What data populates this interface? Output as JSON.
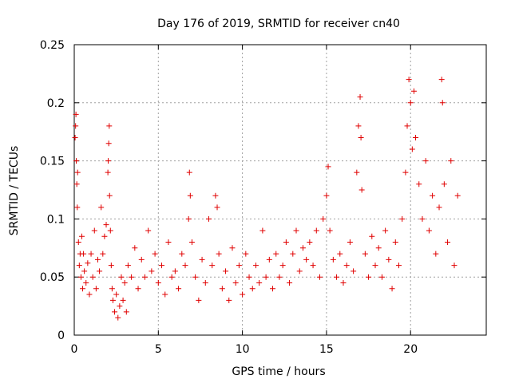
{
  "colors": {
    "marker": "#e00000",
    "grid": "#a0a0a0",
    "axis": "#000000",
    "background": "#ffffff"
  },
  "chart_data": {
    "type": "scatter",
    "title": "Day 176 of 2019, SRMTID for receiver cn40",
    "xlabel": "GPS time / hours",
    "ylabel": "SRMTID / TECUs",
    "xlim": [
      0,
      24.5
    ],
    "ylim": [
      0,
      0.25
    ],
    "grid": true,
    "marker": "+",
    "xticks": [
      0,
      5,
      10,
      15,
      20
    ],
    "xtick_labels": [
      "0",
      "5",
      "10",
      "15",
      "20"
    ],
    "yticks": [
      0,
      0.05,
      0.1,
      0.15,
      0.2,
      0.25
    ],
    "ytick_labels": [
      "0",
      "0.05",
      "0.1",
      "0.15",
      "0.2",
      "0.25"
    ],
    "series": [
      {
        "name": "SRMTID",
        "points": [
          [
            0.05,
            0.17
          ],
          [
            0.08,
            0.18
          ],
          [
            0.1,
            0.19
          ],
          [
            0.12,
            0.15
          ],
          [
            0.15,
            0.13
          ],
          [
            0.18,
            0.11
          ],
          [
            0.2,
            0.14
          ],
          [
            0.25,
            0.08
          ],
          [
            0.3,
            0.06
          ],
          [
            0.35,
            0.07
          ],
          [
            0.4,
            0.05
          ],
          [
            0.45,
            0.085
          ],
          [
            0.5,
            0.04
          ],
          [
            0.55,
            0.07
          ],
          [
            0.6,
            0.055
          ],
          [
            0.7,
            0.045
          ],
          [
            0.8,
            0.062
          ],
          [
            0.9,
            0.035
          ],
          [
            1.0,
            0.07
          ],
          [
            1.1,
            0.05
          ],
          [
            1.2,
            0.09
          ],
          [
            1.3,
            0.04
          ],
          [
            1.4,
            0.065
          ],
          [
            1.5,
            0.055
          ],
          [
            1.6,
            0.11
          ],
          [
            1.7,
            0.07
          ],
          [
            1.8,
            0.085
          ],
          [
            1.9,
            0.095
          ],
          [
            2.0,
            0.14
          ],
          [
            2.02,
            0.15
          ],
          [
            2.05,
            0.165
          ],
          [
            2.08,
            0.18
          ],
          [
            2.1,
            0.12
          ],
          [
            2.15,
            0.09
          ],
          [
            2.2,
            0.06
          ],
          [
            2.25,
            0.04
          ],
          [
            2.3,
            0.03
          ],
          [
            2.4,
            0.02
          ],
          [
            2.5,
            0.035
          ],
          [
            2.6,
            0.015
          ],
          [
            2.7,
            0.025
          ],
          [
            2.8,
            0.05
          ],
          [
            2.9,
            0.03
          ],
          [
            3.0,
            0.045
          ],
          [
            3.1,
            0.02
          ],
          [
            3.2,
            0.06
          ],
          [
            3.4,
            0.05
          ],
          [
            3.6,
            0.075
          ],
          [
            3.8,
            0.04
          ],
          [
            4.0,
            0.065
          ],
          [
            4.2,
            0.05
          ],
          [
            4.4,
            0.09
          ],
          [
            4.6,
            0.055
          ],
          [
            4.8,
            0.07
          ],
          [
            5.0,
            0.045
          ],
          [
            5.2,
            0.06
          ],
          [
            5.4,
            0.035
          ],
          [
            5.6,
            0.08
          ],
          [
            5.8,
            0.05
          ],
          [
            6.0,
            0.055
          ],
          [
            6.2,
            0.04
          ],
          [
            6.4,
            0.07
          ],
          [
            6.6,
            0.06
          ],
          [
            6.8,
            0.1
          ],
          [
            6.85,
            0.14
          ],
          [
            6.9,
            0.12
          ],
          [
            7.0,
            0.08
          ],
          [
            7.2,
            0.05
          ],
          [
            7.4,
            0.03
          ],
          [
            7.6,
            0.065
          ],
          [
            7.8,
            0.045
          ],
          [
            8.0,
            0.1
          ],
          [
            8.2,
            0.06
          ],
          [
            8.4,
            0.12
          ],
          [
            8.5,
            0.11
          ],
          [
            8.6,
            0.07
          ],
          [
            8.8,
            0.04
          ],
          [
            9.0,
            0.055
          ],
          [
            9.2,
            0.03
          ],
          [
            9.4,
            0.075
          ],
          [
            9.6,
            0.045
          ],
          [
            9.8,
            0.06
          ],
          [
            10.0,
            0.035
          ],
          [
            10.2,
            0.07
          ],
          [
            10.4,
            0.05
          ],
          [
            10.6,
            0.04
          ],
          [
            10.8,
            0.06
          ],
          [
            11.0,
            0.045
          ],
          [
            11.2,
            0.09
          ],
          [
            11.4,
            0.05
          ],
          [
            11.6,
            0.065
          ],
          [
            11.8,
            0.04
          ],
          [
            12.0,
            0.07
          ],
          [
            12.2,
            0.05
          ],
          [
            12.4,
            0.06
          ],
          [
            12.6,
            0.08
          ],
          [
            12.8,
            0.045
          ],
          [
            13.0,
            0.07
          ],
          [
            13.2,
            0.09
          ],
          [
            13.4,
            0.055
          ],
          [
            13.6,
            0.075
          ],
          [
            13.8,
            0.065
          ],
          [
            14.0,
            0.08
          ],
          [
            14.2,
            0.06
          ],
          [
            14.4,
            0.09
          ],
          [
            14.6,
            0.05
          ],
          [
            14.8,
            0.1
          ],
          [
            15.0,
            0.12
          ],
          [
            15.1,
            0.145
          ],
          [
            15.2,
            0.09
          ],
          [
            15.4,
            0.065
          ],
          [
            15.6,
            0.05
          ],
          [
            15.8,
            0.07
          ],
          [
            16.0,
            0.045
          ],
          [
            16.2,
            0.06
          ],
          [
            16.4,
            0.08
          ],
          [
            16.6,
            0.055
          ],
          [
            16.8,
            0.14
          ],
          [
            16.9,
            0.18
          ],
          [
            17.0,
            0.205
          ],
          [
            17.05,
            0.17
          ],
          [
            17.1,
            0.125
          ],
          [
            17.3,
            0.07
          ],
          [
            17.5,
            0.05
          ],
          [
            17.7,
            0.085
          ],
          [
            17.9,
            0.06
          ],
          [
            18.1,
            0.075
          ],
          [
            18.3,
            0.05
          ],
          [
            18.5,
            0.09
          ],
          [
            18.7,
            0.065
          ],
          [
            18.9,
            0.04
          ],
          [
            19.1,
            0.08
          ],
          [
            19.3,
            0.06
          ],
          [
            19.5,
            0.1
          ],
          [
            19.7,
            0.14
          ],
          [
            19.8,
            0.18
          ],
          [
            19.9,
            0.22
          ],
          [
            20.0,
            0.2
          ],
          [
            20.1,
            0.16
          ],
          [
            20.2,
            0.21
          ],
          [
            20.3,
            0.17
          ],
          [
            20.5,
            0.13
          ],
          [
            20.7,
            0.1
          ],
          [
            20.9,
            0.15
          ],
          [
            21.1,
            0.09
          ],
          [
            21.3,
            0.12
          ],
          [
            21.5,
            0.07
          ],
          [
            21.7,
            0.11
          ],
          [
            21.85,
            0.22
          ],
          [
            21.9,
            0.2
          ],
          [
            22.0,
            0.13
          ],
          [
            22.2,
            0.08
          ],
          [
            22.4,
            0.15
          ],
          [
            22.6,
            0.06
          ],
          [
            22.8,
            0.12
          ]
        ]
      }
    ]
  }
}
